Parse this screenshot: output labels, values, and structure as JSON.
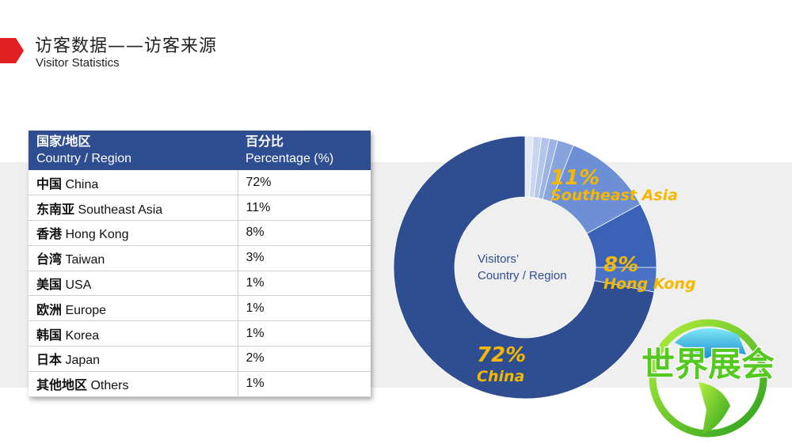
{
  "header": {
    "title_cn": "访客数据——访客来源",
    "title_en": "Visitor Statistics"
  },
  "table": {
    "header_col1_cn": "国家/地区",
    "header_col1_en": "Country / Region",
    "header_col2_cn": "百分比",
    "header_col2_en": "Percentage (%)",
    "rows": [
      {
        "cn": "中国",
        "en": "China",
        "pct": "72%"
      },
      {
        "cn": "东南亚",
        "en": "Southeast Asia",
        "pct": "11%"
      },
      {
        "cn": "香港",
        "en": "Hong Kong",
        "pct": "8%"
      },
      {
        "cn": "台湾",
        "en": "Taiwan",
        "pct": "3%"
      },
      {
        "cn": "美国",
        "en": "USA",
        "pct": "1%"
      },
      {
        "cn": "欧洲",
        "en": "Europe",
        "pct": "1%"
      },
      {
        "cn": "韩国",
        "en": "Korea",
        "pct": "1%"
      },
      {
        "cn": "日本",
        "en": "Japan",
        "pct": "2%"
      },
      {
        "cn": "其他地区",
        "en": "Others",
        "pct": "1%"
      }
    ]
  },
  "chart_data": {
    "type": "pie",
    "center_label_line1": "Visitors’",
    "center_label_line2": "Country / Region",
    "slices": [
      {
        "name": "China",
        "value": 72,
        "color": "#2e4e91",
        "label_pct": "72%",
        "label_name": "China"
      },
      {
        "name": "Southeast Asia",
        "value": 11,
        "color": "#6d8fd6",
        "label_pct": "11%",
        "label_name": "Southeast Asia"
      },
      {
        "name": "Hong Kong",
        "value": 8,
        "color": "#3a63b8",
        "label_pct": "8%",
        "label_name": "Hong Kong"
      },
      {
        "name": "Taiwan",
        "value": 3,
        "color": "#4a72c4",
        "label_pct": "",
        "label_name": ""
      },
      {
        "name": "USA",
        "value": 1,
        "color": "#c9d5ee",
        "label_pct": "",
        "label_name": ""
      },
      {
        "name": "Europe",
        "value": 1,
        "color": "#b3c5ea",
        "label_pct": "",
        "label_name": ""
      },
      {
        "name": "Korea",
        "value": 1,
        "color": "#9db3e2",
        "label_pct": "",
        "label_name": ""
      },
      {
        "name": "Japan",
        "value": 2,
        "color": "#89a4dc",
        "label_pct": "",
        "label_name": ""
      },
      {
        "name": "Others",
        "value": 1,
        "color": "#e3e9f6",
        "label_pct": "",
        "label_name": ""
      }
    ],
    "label_color": "#f5b800"
  },
  "logo": {
    "text": "世界展会",
    "name": "world-expo-logo"
  },
  "colors": {
    "accent_red": "#e02020",
    "table_header": "#2e4e91",
    "band": "#efefef"
  }
}
